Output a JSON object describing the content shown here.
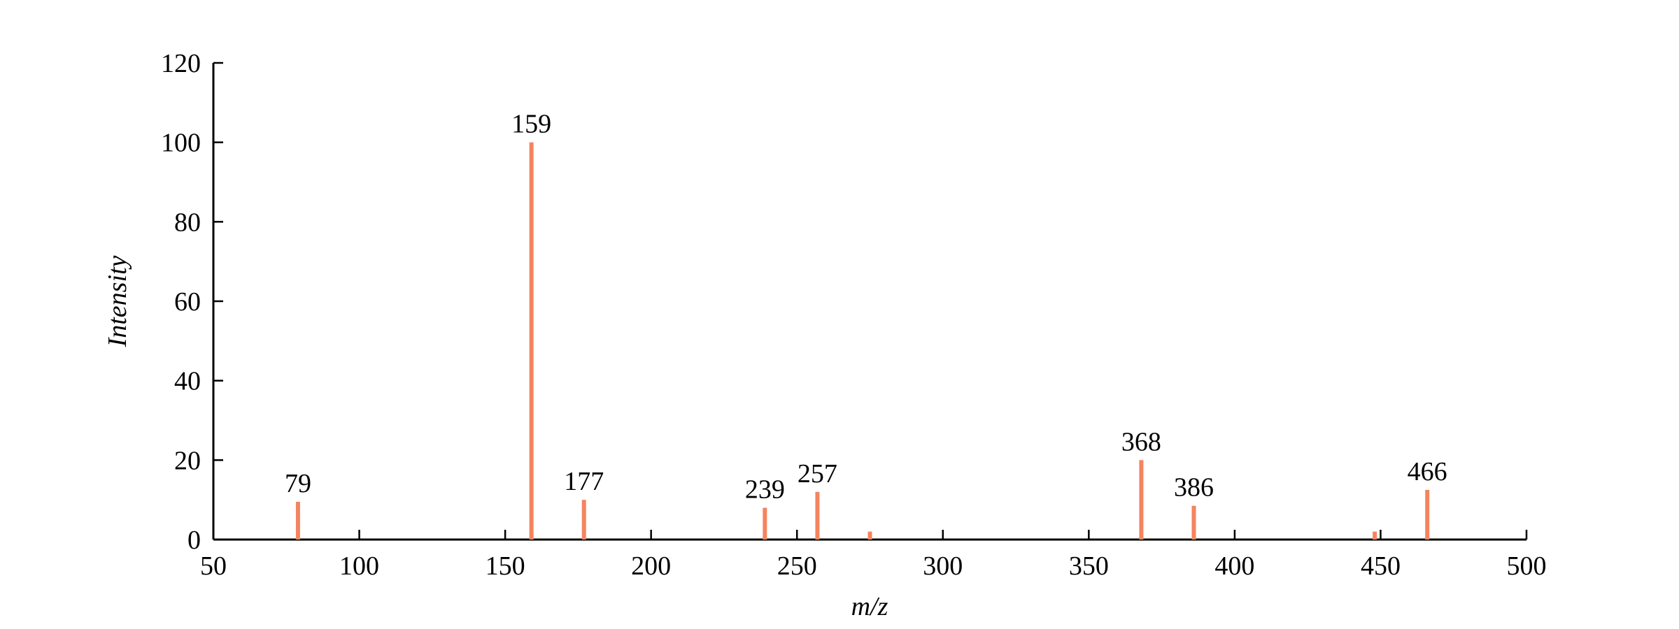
{
  "chart_data": {
    "type": "stem",
    "xlabel": "m/z",
    "ylabel": "Intensity",
    "x": [
      79,
      159,
      177,
      239,
      257,
      275,
      368,
      386,
      448,
      466
    ],
    "values": [
      9.5,
      100,
      10,
      8,
      12,
      2,
      20,
      8.5,
      2,
      12.5
    ],
    "labels": [
      "79",
      "159",
      "177",
      "239",
      "257",
      null,
      "368",
      "386",
      null,
      "466"
    ],
    "color": "#f4845f",
    "xlim": [
      50,
      500
    ],
    "xticks": [
      50,
      100,
      150,
      200,
      250,
      300,
      350,
      400,
      450,
      500
    ],
    "ylim": [
      0,
      120
    ],
    "yticks": [
      0,
      20,
      40,
      60,
      80,
      100,
      120
    ]
  }
}
